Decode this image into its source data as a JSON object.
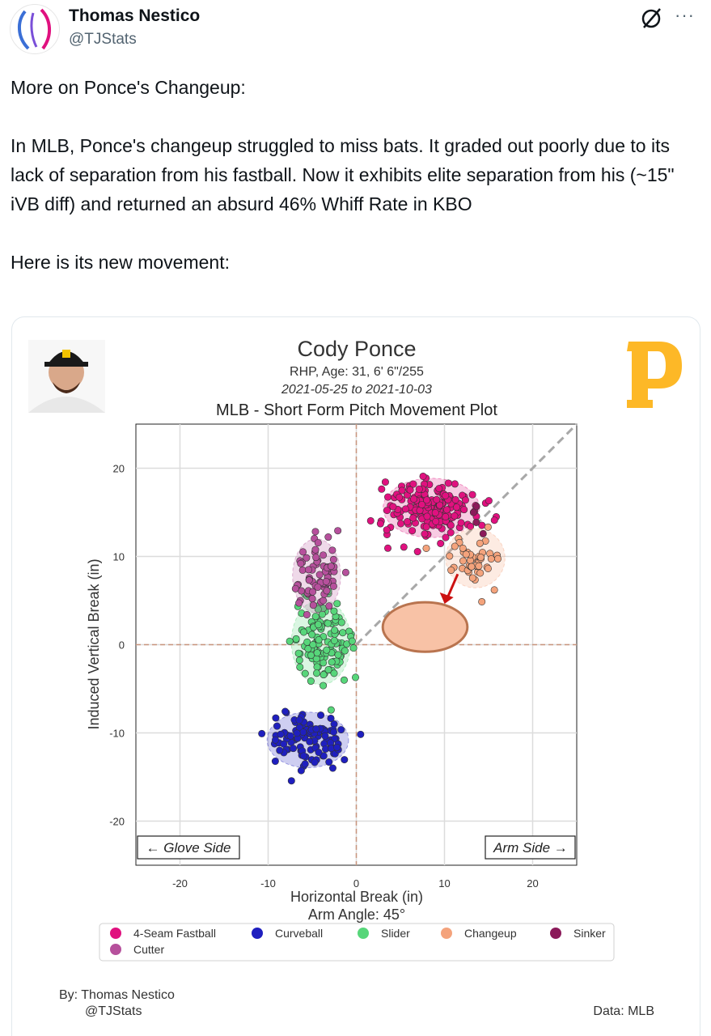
{
  "author": {
    "display_name": "Thomas Nestico",
    "handle": "@TJStats"
  },
  "icons": {
    "grok": "grok-icon",
    "more": "more-icon"
  },
  "tweet": {
    "paragraphs": [
      "More on Ponce's Changeup:",
      "In MLB, Ponce's changeup struggled to miss bats. It graded out poorly due to its lack of separation from his fastball. Now it exhibits elite separation from his (~15\" iVB diff) and returned an absurd 46% Whiff Rate in KBO",
      "Here is its new movement:"
    ]
  },
  "colors": {
    "four_seam": "#e0117f",
    "curveball": "#1f1fbf",
    "slider": "#57d67a",
    "changeup": "#f4a37c",
    "sinker": "#8b1a5a",
    "cutter": "#b6509c"
  },
  "chart_data": {
    "type": "scatter",
    "title": "Cody Ponce",
    "subtitle_line1": "RHP, Age: 31, 6' 6\"/255",
    "subtitle_line2": "2021-05-25 to 2021-10-03",
    "chart_title": "MLB - Short Form Pitch Movement Plot",
    "xlabel": "Horizontal Break (in)",
    "ylabel": "Induced Vertical Break (in)",
    "arm_angle": "Arm Angle: 45°",
    "xlim": [
      -25,
      25
    ],
    "ylim": [
      -25,
      25
    ],
    "xticks": [
      -20,
      -10,
      0,
      10,
      20
    ],
    "yticks": [
      -20,
      -10,
      0,
      10,
      20
    ],
    "grid": true,
    "glove_side": "← Glove Side",
    "arm_side": "Arm Side →",
    "legend": [
      "4-Seam Fastball",
      "Curveball",
      "Slider",
      "Changeup",
      "Sinker",
      "Cutter"
    ],
    "legend_position": "bottom",
    "credit_by": "By: Thomas Nestico",
    "credit_handle": "@TJStats",
    "credit_data": "Data: MLB",
    "series": [
      {
        "name": "4-Seam Fastball",
        "center": [
          8.5,
          15.5
        ],
        "spread": [
          2.6,
          1.6
        ],
        "count": 190
      },
      {
        "name": "Curveball",
        "center": [
          -5.5,
          -10.8
        ],
        "spread": [
          2.2,
          1.5
        ],
        "count": 110
      },
      {
        "name": "Slider",
        "center": [
          -4.0,
          0.3
        ],
        "spread": [
          1.6,
          2.3
        ],
        "count": 120
      },
      {
        "name": "Changeup",
        "center": [
          13.5,
          9.8
        ],
        "spread": [
          1.6,
          1.6
        ],
        "count": 45
      },
      {
        "name": "Sinker",
        "center": [
          13.5,
          14.5
        ],
        "spread": [
          0.6,
          0.6
        ],
        "count": 4
      },
      {
        "name": "Cutter",
        "center": [
          -4.5,
          7.8
        ],
        "spread": [
          1.3,
          2.0
        ],
        "count": 75
      }
    ],
    "highlight": {
      "shape": "ellipse",
      "center": [
        7.8,
        2.0
      ],
      "rx": 4.8,
      "ry": 2.8,
      "arrow_from": [
        11.5,
        8.0
      ],
      "arrow_to": [
        10.2,
        5.0
      ]
    }
  }
}
